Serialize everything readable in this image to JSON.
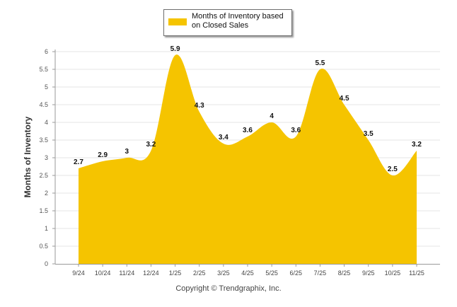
{
  "chart_data": {
    "type": "area",
    "title": "",
    "xlabel": "",
    "ylabel": "Months of Inventory",
    "ylim": [
      0,
      6
    ],
    "yticks": [
      "0",
      "0.5",
      "1",
      "1.5",
      "2",
      "2.5",
      "3",
      "3.5",
      "4",
      "4.5",
      "5",
      "5.5",
      "6"
    ],
    "categories": [
      "9/24",
      "10/24",
      "11/24",
      "12/24",
      "1/25",
      "2/25",
      "3/25",
      "4/25",
      "5/25",
      "6/25",
      "7/25",
      "8/25",
      "9/25",
      "10/25",
      "11/25"
    ],
    "series": [
      {
        "name": "Months of Inventory based on Closed Sales",
        "values": [
          2.7,
          2.9,
          3,
          3.2,
          5.9,
          4.3,
          3.4,
          3.6,
          4,
          3.6,
          5.5,
          4.5,
          3.5,
          2.5,
          3.2
        ],
        "labels": [
          "2.7",
          "2.9",
          "3",
          "3.2",
          "5.9",
          "4.3",
          "3.4",
          "3.6",
          "4",
          "3.6",
          "5.5",
          "4.5",
          "3.5",
          "2.5",
          "3.2"
        ],
        "color": "#f5c400"
      }
    ],
    "grid": true,
    "legend": "top-center"
  },
  "legend": {
    "label": "Months of Inventory based on Closed Sales"
  },
  "footer": {
    "copyright": "Copyright © Trendgraphix, Inc."
  }
}
